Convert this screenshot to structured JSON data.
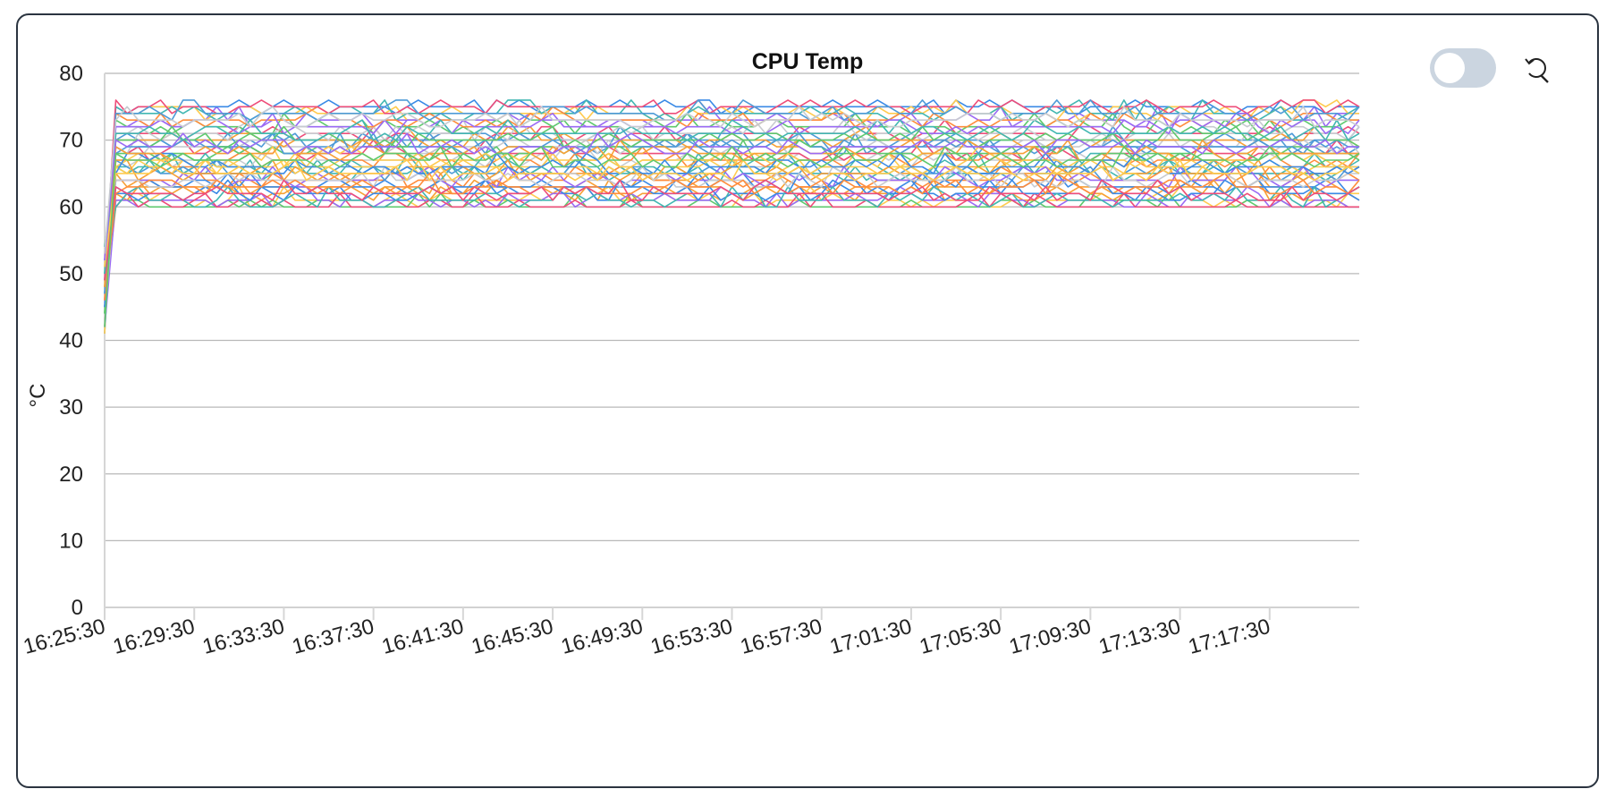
{
  "toolbar": {
    "toggle_state": "off",
    "reset_icon": "zoom-reset-icon"
  },
  "colors": {
    "grid": "#b8b8b8",
    "axis": "#d6d6d6",
    "toggle_track": "#cbd5e0",
    "series_palette": [
      "#4e9bd8",
      "#f7a036",
      "#ee4d7a",
      "#42b7b2",
      "#ffcb4f",
      "#9b6af4",
      "#c7cbd0",
      "#5ec96e",
      "#3a8ae6",
      "#ff8c3b"
    ]
  },
  "chart_data": {
    "type": "line",
    "title": "CPU Temp",
    "ylabel": "°C",
    "xlabel": "",
    "ylim": [
      0,
      80
    ],
    "yticks": [
      0,
      10,
      20,
      30,
      40,
      50,
      60,
      70,
      80
    ],
    "xlim": [
      "16:25:30",
      "17:21:30"
    ],
    "xticks": [
      "16:25:30",
      "16:29:30",
      "16:33:30",
      "16:37:30",
      "16:41:30",
      "16:45:30",
      "16:49:30",
      "16:53:30",
      "16:57:30",
      "17:01:30",
      "17:05:30",
      "17:09:30",
      "17:13:30",
      "17:17:30"
    ],
    "grid": true,
    "legend": "none",
    "sample_interval_s": 30,
    "series_count": 48,
    "initial_range": [
      41,
      54
    ],
    "steady_range": [
      60,
      76
    ],
    "series_ranges": [
      [
        41,
        69
      ],
      [
        42,
        63
      ],
      [
        43,
        71
      ],
      [
        44,
        65
      ],
      [
        45,
        61
      ],
      [
        46,
        73
      ],
      [
        47,
        67
      ],
      [
        48,
        60
      ],
      [
        49,
        75
      ],
      [
        50,
        64
      ],
      [
        51,
        70
      ],
      [
        52,
        62
      ],
      [
        53,
        68
      ],
      [
        54,
        66
      ],
      [
        41,
        74
      ],
      [
        42,
        61
      ],
      [
        43,
        69
      ],
      [
        44,
        72
      ],
      [
        45,
        63
      ],
      [
        46,
        67
      ],
      [
        47,
        65
      ],
      [
        48,
        70
      ],
      [
        49,
        60
      ],
      [
        50,
        74
      ],
      [
        51,
        66
      ],
      [
        52,
        64
      ],
      [
        53,
        71
      ],
      [
        44,
        68
      ],
      [
        45,
        62
      ],
      [
        46,
        73
      ],
      [
        47,
        69
      ],
      [
        48,
        65
      ],
      [
        49,
        75
      ],
      [
        50,
        61
      ],
      [
        51,
        67
      ],
      [
        52,
        72
      ],
      [
        43,
        64
      ],
      [
        44,
        70
      ],
      [
        45,
        66
      ],
      [
        46,
        63
      ],
      [
        47,
        74
      ],
      [
        48,
        68
      ],
      [
        49,
        62
      ],
      [
        50,
        71
      ],
      [
        51,
        65
      ],
      [
        52,
        69
      ],
      [
        53,
        73
      ],
      [
        42,
        67
      ]
    ]
  }
}
